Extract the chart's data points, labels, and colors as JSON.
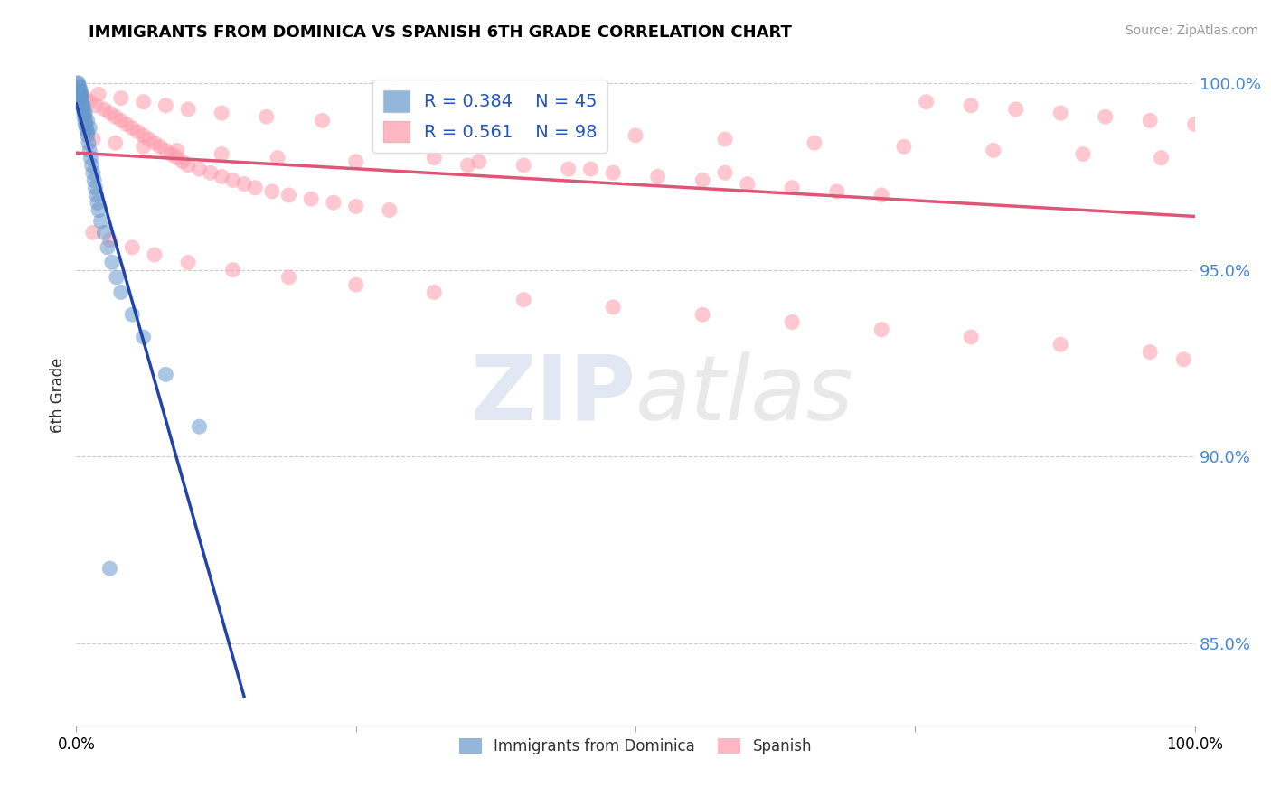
{
  "title": "IMMIGRANTS FROM DOMINICA VS SPANISH 6TH GRADE CORRELATION CHART",
  "source_text": "Source: ZipAtlas.com",
  "ylabel": "6th Grade",
  "r_blue": 0.384,
  "n_blue": 45,
  "r_pink": 0.561,
  "n_pink": 98,
  "xlim": [
    0.0,
    1.0
  ],
  "ylim": [
    0.828,
    1.005
  ],
  "yticks": [
    0.85,
    0.9,
    0.95,
    1.0
  ],
  "ytick_labels": [
    "85.0%",
    "90.0%",
    "95.0%",
    "100.0%"
  ],
  "xticks": [
    0.0,
    0.25,
    0.5,
    0.75,
    1.0
  ],
  "xtick_labels": [
    "0.0%",
    "",
    "",
    "",
    "100.0%"
  ],
  "blue_color": "#6699CC",
  "pink_color": "#FF99AA",
  "blue_line_color": "#2244AA",
  "pink_line_color": "#DD5577",
  "background_color": "#FFFFFF",
  "watermark_zip": "ZIP",
  "watermark_atlas": "atlas",
  "blue_scatter_x": [
    0.002,
    0.003,
    0.004,
    0.004,
    0.005,
    0.005,
    0.006,
    0.006,
    0.007,
    0.007,
    0.008,
    0.008,
    0.009,
    0.01,
    0.01,
    0.011,
    0.012,
    0.013,
    0.014,
    0.015,
    0.016,
    0.017,
    0.018,
    0.019,
    0.02,
    0.022,
    0.025,
    0.028,
    0.032,
    0.036,
    0.04,
    0.05,
    0.06,
    0.08,
    0.11,
    0.001,
    0.002,
    0.003,
    0.004,
    0.005,
    0.006,
    0.008,
    0.01,
    0.012,
    0.03
  ],
  "blue_scatter_y": [
    1.0,
    0.999,
    0.998,
    0.997,
    0.996,
    0.995,
    0.994,
    0.993,
    0.992,
    0.991,
    0.99,
    0.989,
    0.988,
    0.987,
    0.986,
    0.984,
    0.982,
    0.98,
    0.978,
    0.976,
    0.974,
    0.972,
    0.97,
    0.968,
    0.966,
    0.963,
    0.96,
    0.956,
    0.952,
    0.948,
    0.944,
    0.938,
    0.932,
    0.922,
    0.908,
    1.0,
    0.999,
    0.998,
    0.997,
    0.996,
    0.994,
    0.992,
    0.99,
    0.988,
    0.87
  ],
  "pink_scatter_x": [
    0.003,
    0.005,
    0.008,
    0.012,
    0.018,
    0.025,
    0.03,
    0.035,
    0.04,
    0.045,
    0.05,
    0.055,
    0.06,
    0.065,
    0.07,
    0.075,
    0.08,
    0.085,
    0.09,
    0.095,
    0.1,
    0.11,
    0.12,
    0.13,
    0.14,
    0.15,
    0.16,
    0.175,
    0.19,
    0.21,
    0.23,
    0.25,
    0.28,
    0.32,
    0.36,
    0.4,
    0.44,
    0.48,
    0.52,
    0.56,
    0.6,
    0.64,
    0.68,
    0.72,
    0.76,
    0.8,
    0.84,
    0.88,
    0.92,
    0.96,
    1.0,
    0.02,
    0.04,
    0.06,
    0.08,
    0.1,
    0.13,
    0.17,
    0.22,
    0.28,
    0.35,
    0.42,
    0.5,
    0.58,
    0.66,
    0.74,
    0.82,
    0.9,
    0.97,
    0.015,
    0.03,
    0.05,
    0.07,
    0.1,
    0.14,
    0.19,
    0.25,
    0.32,
    0.4,
    0.48,
    0.56,
    0.64,
    0.72,
    0.8,
    0.88,
    0.96,
    0.99,
    0.015,
    0.035,
    0.06,
    0.09,
    0.13,
    0.18,
    0.25,
    0.35,
    0.46,
    0.58
  ],
  "pink_scatter_y": [
    0.998,
    0.997,
    0.996,
    0.995,
    0.994,
    0.993,
    0.992,
    0.991,
    0.99,
    0.989,
    0.988,
    0.987,
    0.986,
    0.985,
    0.984,
    0.983,
    0.982,
    0.981,
    0.98,
    0.979,
    0.978,
    0.977,
    0.976,
    0.975,
    0.974,
    0.973,
    0.972,
    0.971,
    0.97,
    0.969,
    0.968,
    0.967,
    0.966,
    0.98,
    0.979,
    0.978,
    0.977,
    0.976,
    0.975,
    0.974,
    0.973,
    0.972,
    0.971,
    0.97,
    0.995,
    0.994,
    0.993,
    0.992,
    0.991,
    0.99,
    0.989,
    0.997,
    0.996,
    0.995,
    0.994,
    0.993,
    0.992,
    0.991,
    0.99,
    0.989,
    0.988,
    0.987,
    0.986,
    0.985,
    0.984,
    0.983,
    0.982,
    0.981,
    0.98,
    0.96,
    0.958,
    0.956,
    0.954,
    0.952,
    0.95,
    0.948,
    0.946,
    0.944,
    0.942,
    0.94,
    0.938,
    0.936,
    0.934,
    0.932,
    0.93,
    0.928,
    0.926,
    0.985,
    0.984,
    0.983,
    0.982,
    0.981,
    0.98,
    0.979,
    0.978,
    0.977,
    0.976
  ]
}
